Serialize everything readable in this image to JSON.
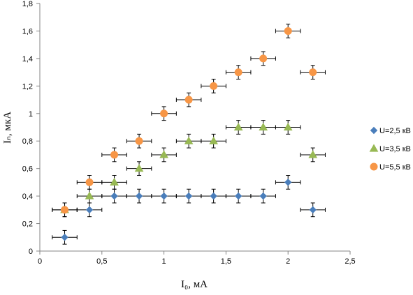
{
  "chart_data": {
    "type": "scatter",
    "xlabel": "I₀, мА",
    "ylabel": "Iₙ, мкА",
    "xlim": [
      0,
      2.5
    ],
    "ylim": [
      0,
      1.8
    ],
    "x_ticks": [
      {
        "value": 0,
        "label": "0"
      },
      {
        "value": 0.5,
        "label": "0,5"
      },
      {
        "value": 1,
        "label": "1"
      },
      {
        "value": 1.5,
        "label": "1,5"
      },
      {
        "value": 2,
        "label": "2"
      },
      {
        "value": 2.5,
        "label": "2,5"
      }
    ],
    "y_ticks": [
      {
        "value": 0,
        "label": "0"
      },
      {
        "value": 0.2,
        "label": "0,2"
      },
      {
        "value": 0.4,
        "label": "0,4"
      },
      {
        "value": 0.6,
        "label": "0,6"
      },
      {
        "value": 0.8,
        "label": "0,8"
      },
      {
        "value": 1.0,
        "label": "1"
      },
      {
        "value": 1.2,
        "label": "1,2"
      },
      {
        "value": 1.4,
        "label": "1,4"
      },
      {
        "value": 1.6,
        "label": "1,6"
      },
      {
        "value": 1.8,
        "label": "1,8"
      }
    ],
    "grid": false,
    "legend_position": "right",
    "x_error": 0.1,
    "y_error": 0.05,
    "series": [
      {
        "name": "U=2,5 кВ",
        "marker": "diamond",
        "color": "#4a7ebb",
        "x": [
          0.2,
          0.4,
          0.6,
          0.8,
          1.0,
          1.2,
          1.4,
          1.6,
          1.8,
          2.0,
          2.2
        ],
        "y": [
          0.1,
          0.3,
          0.4,
          0.4,
          0.4,
          0.4,
          0.4,
          0.4,
          0.4,
          0.5,
          0.3
        ]
      },
      {
        "name": "U=3,5 кВ",
        "marker": "triangle",
        "color": "#98b954",
        "x": [
          0.2,
          0.4,
          0.6,
          0.8,
          1.0,
          1.2,
          1.4,
          1.6,
          1.8,
          2.0,
          2.2
        ],
        "y": [
          0.3,
          0.4,
          0.5,
          0.6,
          0.7,
          0.8,
          0.8,
          0.9,
          0.9,
          0.9,
          0.7
        ]
      },
      {
        "name": "U=5,5 кВ",
        "marker": "circle",
        "color": "#f79646",
        "x": [
          0.2,
          0.4,
          0.6,
          0.8,
          1.0,
          1.2,
          1.4,
          1.6,
          1.8,
          2.0,
          2.2
        ],
        "y": [
          0.3,
          0.5,
          0.7,
          0.8,
          1.0,
          1.1,
          1.2,
          1.3,
          1.4,
          1.6,
          1.3
        ]
      }
    ]
  }
}
